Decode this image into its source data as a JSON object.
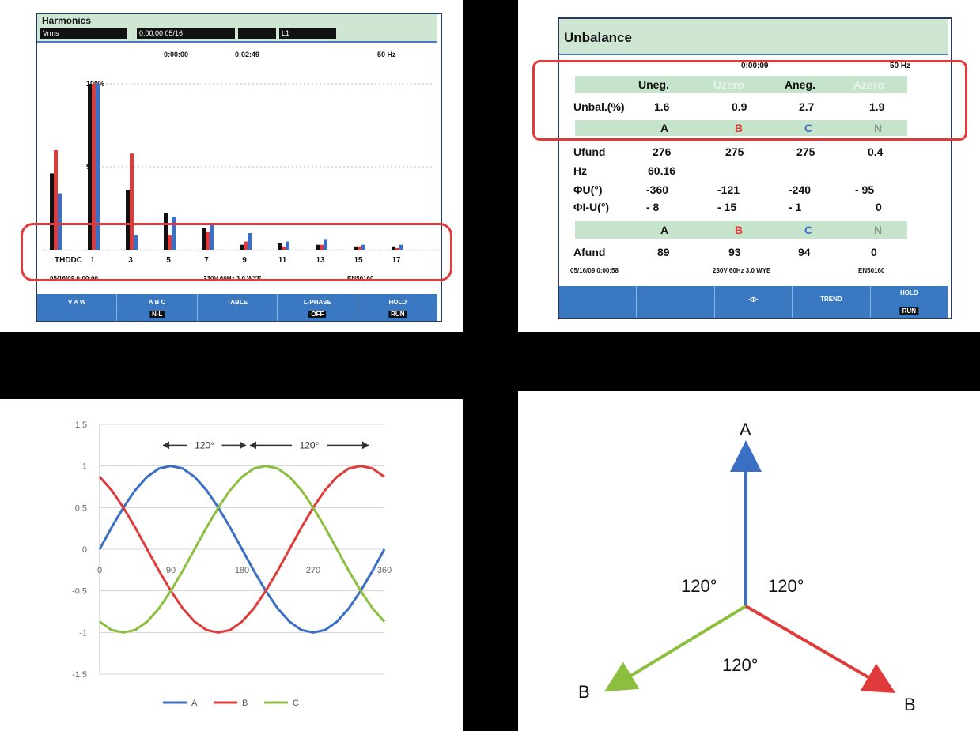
{
  "colors": {
    "A": "#3a6fc4",
    "B": "#e03b3b",
    "C": "#8cbf3f",
    "bar_black": "#111111",
    "screen_blue": "#3a78c2",
    "title_green": "#cfe6d2",
    "highlight": "#e03a3a"
  },
  "harmonics": {
    "title": "Harmonics",
    "status_boxes": [
      "Vrms",
      "0:00:00 05/16",
      "",
      "L1"
    ],
    "info": {
      "left": "0:00:00",
      "mid": "0:02:49",
      "right": "50 Hz"
    },
    "y_labels": [
      "100%",
      "50%"
    ],
    "chart_data": {
      "type": "bar",
      "categories": [
        "THDDC",
        "1",
        "3",
        "5",
        "7",
        "9",
        "11",
        "13",
        "15",
        "17"
      ],
      "series": [
        {
          "name": "A",
          "values": [
            46,
            100,
            36,
            22,
            13,
            3,
            4,
            3,
            2,
            2
          ]
        },
        {
          "name": "B",
          "values": [
            60,
            100,
            58,
            9,
            11,
            5,
            2,
            3,
            2,
            1
          ]
        },
        {
          "name": "C",
          "values": [
            34,
            100,
            9,
            20,
            16,
            10,
            5,
            6,
            3,
            3
          ]
        }
      ],
      "ylim": [
        0,
        100
      ]
    },
    "footer": {
      "left": "05/16/09  0:00:00",
      "mid": "230V  60Hz  3.0 WYE",
      "right": "EN50160"
    },
    "softkeys": [
      {
        "label": "V A W",
        "box": ""
      },
      {
        "label": "A  B  C",
        "box": "N-L"
      },
      {
        "label": "TABLE",
        "box": ""
      },
      {
        "label": "L-PHASE",
        "box": "OFF"
      },
      {
        "label": "HOLD",
        "box": "RUN"
      }
    ]
  },
  "unbalance": {
    "title": "Unbalance",
    "top_line": {
      "mid": "0:00:09",
      "right": "50 Hz"
    },
    "header_cells": [
      "Uneg.",
      "Uzero",
      "Aneg.",
      "Azero"
    ],
    "unbal_row": {
      "label": "Unbal.(%)",
      "values": [
        "1.6",
        "0.9",
        "2.7",
        "1.9"
      ]
    },
    "phase_row1": [
      "A",
      "B",
      "C",
      "N"
    ],
    "rows": [
      {
        "label": "Ufund",
        "values": [
          "276",
          "275",
          "275",
          "0.4"
        ]
      },
      {
        "label": "Hz",
        "values": [
          "60.16",
          "",
          "",
          ""
        ]
      },
      {
        "label": "ΦU(°)",
        "values": [
          "-360",
          "-121",
          "-240",
          "- 95"
        ]
      },
      {
        "label": "ΦI-U(°)",
        "values": [
          "-  8",
          "-  15",
          "-  1",
          "0"
        ]
      }
    ],
    "phase_row2": [
      "A",
      "B",
      "C",
      "N"
    ],
    "afund": {
      "label": "Afund",
      "values": [
        "89",
        "93",
        "94",
        "0"
      ]
    },
    "footer": {
      "left": "05/16/09  0:00:58",
      "mid": "230V  60Hz  3.0 WYE",
      "right": "EN50160"
    },
    "softkeys": [
      {
        "label": "",
        "box": ""
      },
      {
        "label": "",
        "box": ""
      },
      {
        "label": "◁▷",
        "box": ""
      },
      {
        "label": "TREND",
        "box": ""
      },
      {
        "label": "HOLD",
        "box": "RUN"
      }
    ]
  },
  "waveform": {
    "chart_data": {
      "type": "line",
      "x": [
        0,
        15,
        30,
        45,
        60,
        75,
        90,
        105,
        120,
        135,
        150,
        165,
        180,
        195,
        210,
        225,
        240,
        255,
        270,
        285,
        300,
        315,
        330,
        345,
        360
      ],
      "series": [
        {
          "name": "A",
          "values": [
            0,
            0.26,
            0.5,
            0.71,
            0.87,
            0.97,
            1,
            0.97,
            0.87,
            0.71,
            0.5,
            0.26,
            0,
            -0.26,
            -0.5,
            -0.71,
            -0.87,
            -0.97,
            -1,
            -0.97,
            -0.87,
            -0.71,
            -0.5,
            -0.26,
            0
          ]
        },
        {
          "name": "B",
          "values": [
            0.87,
            0.71,
            0.5,
            0.26,
            0,
            -0.26,
            -0.5,
            -0.71,
            -0.87,
            -0.97,
            -1,
            -0.97,
            -0.87,
            -0.71,
            -0.5,
            -0.26,
            0,
            0.26,
            0.5,
            0.71,
            0.87,
            0.97,
            1,
            0.97,
            0.87
          ]
        },
        {
          "name": "C",
          "values": [
            -0.87,
            -0.97,
            -1,
            -0.97,
            -0.87,
            -0.71,
            -0.5,
            -0.26,
            0,
            0.26,
            0.5,
            0.71,
            0.87,
            0.97,
            1,
            0.97,
            0.87,
            0.71,
            0.5,
            0.26,
            0,
            -0.26,
            -0.5,
            -0.71,
            -0.87
          ]
        }
      ],
      "ylim": [
        -1.5,
        1.5
      ],
      "xlim": [
        0,
        360
      ],
      "y_ticks": [
        "1.5",
        "1",
        "0.5",
        "0",
        "-0.5",
        "-1",
        "-1.5"
      ],
      "x_ticks": [
        "0",
        "90",
        "180",
        "270",
        "360"
      ],
      "annotations": [
        "120°",
        "120°"
      ],
      "grid": true,
      "legend": "bottom"
    }
  },
  "vector": {
    "labels": {
      "top": "A",
      "left": "B",
      "right": "B"
    },
    "angles": [
      "120°",
      "120°",
      "120°"
    ]
  }
}
